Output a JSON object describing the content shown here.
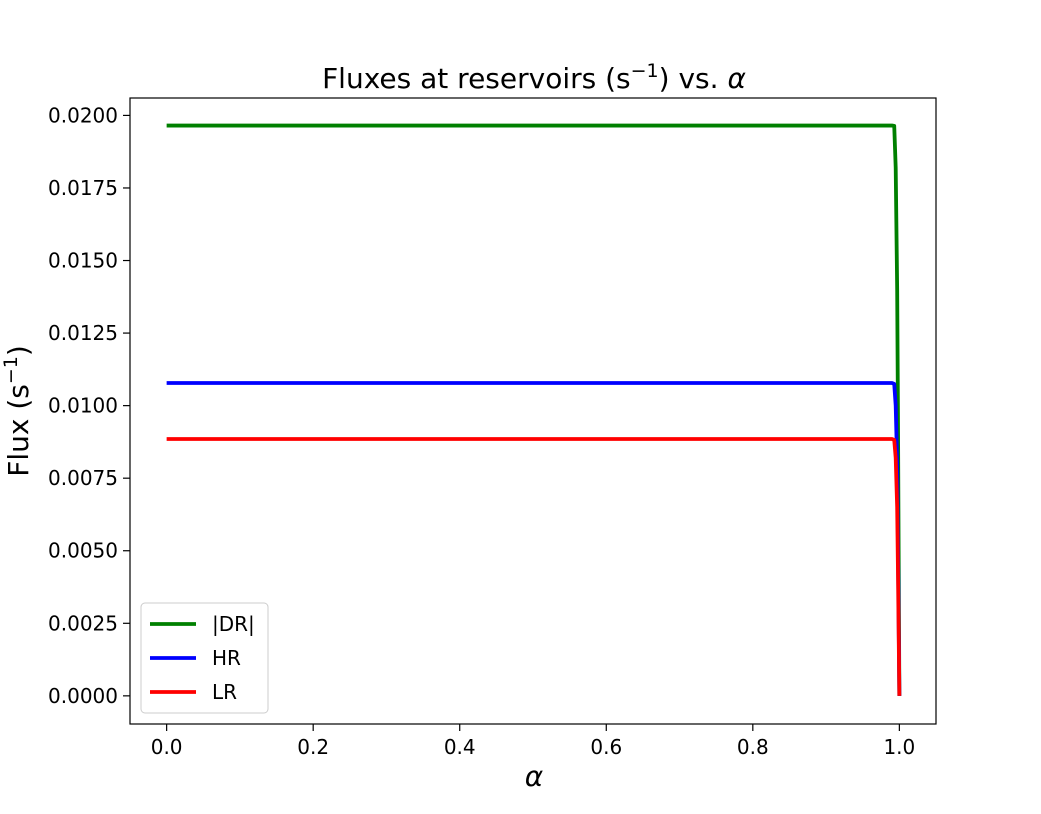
{
  "chart_data": {
    "type": "line",
    "title_main": "Fluxes at reservoirs (s",
    "title_sup": "−1",
    "title_rest": ") vs. ",
    "title_symbol": "α",
    "xlabel": "α",
    "ylabel_main": "Flux (s",
    "ylabel_sup": "−1",
    "ylabel_end": ")",
    "xlim": [
      -0.05,
      1.05
    ],
    "ylim": [
      -0.00097,
      0.0206
    ],
    "xticks": [
      0.0,
      0.2,
      0.4,
      0.6,
      0.8,
      1.0
    ],
    "xtick_labels": [
      "0.0",
      "0.2",
      "0.4",
      "0.6",
      "0.8",
      "1.0"
    ],
    "yticks": [
      0.0,
      0.0025,
      0.005,
      0.0075,
      0.01,
      0.0125,
      0.015,
      0.0175,
      0.02
    ],
    "ytick_labels": [
      "0.0000",
      "0.0025",
      "0.0050",
      "0.0075",
      "0.0100",
      "0.0125",
      "0.0150",
      "0.0175",
      "0.0200"
    ],
    "grid": false,
    "legend_position": "lower-left",
    "series": [
      {
        "name": "|DR|",
        "color": "#008000",
        "points": [
          [
            0.0,
            0.01965
          ],
          [
            0.99,
            0.01965
          ],
          [
            0.993,
            0.01964
          ],
          [
            0.995,
            0.0182
          ],
          [
            0.997,
            0.014
          ],
          [
            0.998,
            0.01
          ],
          [
            0.999,
            0.005
          ],
          [
            1.0,
            0.0
          ]
        ]
      },
      {
        "name": "HR",
        "color": "#0000ff",
        "points": [
          [
            0.0,
            0.01078
          ],
          [
            0.99,
            0.01078
          ],
          [
            0.993,
            0.01075
          ],
          [
            0.995,
            0.01
          ],
          [
            0.997,
            0.008
          ],
          [
            0.998,
            0.0055
          ],
          [
            0.999,
            0.0028
          ],
          [
            1.0,
            0.0
          ]
        ]
      },
      {
        "name": "LR",
        "color": "#ff0000",
        "points": [
          [
            0.0,
            0.00885
          ],
          [
            0.99,
            0.00885
          ],
          [
            0.993,
            0.00882
          ],
          [
            0.995,
            0.0082
          ],
          [
            0.997,
            0.0065
          ],
          [
            0.998,
            0.0045
          ],
          [
            0.999,
            0.0023
          ],
          [
            1.0,
            0.0
          ]
        ]
      }
    ]
  }
}
